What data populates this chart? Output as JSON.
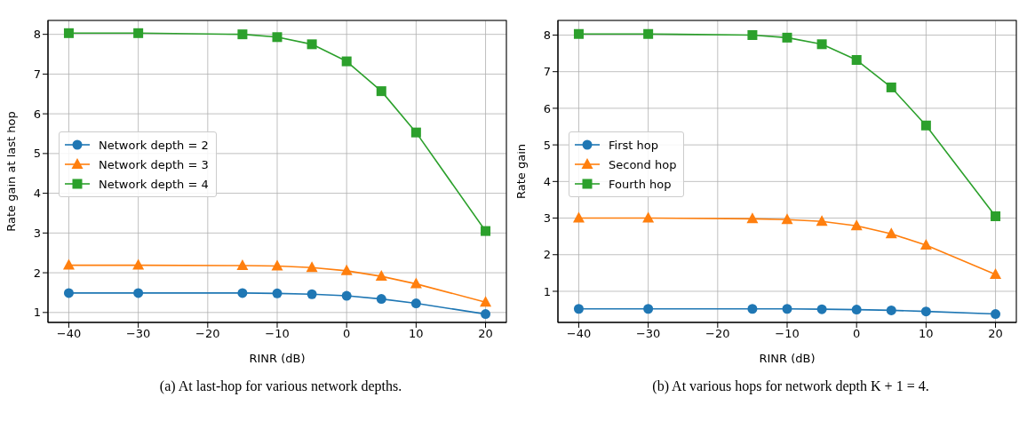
{
  "chart_data": [
    {
      "type": "line",
      "xlabel": "RINR (dB)",
      "ylabel": "Rate gain at last hop",
      "annotations": [
        "(a) At last-hop for various network depths."
      ],
      "x": [
        -40,
        -30,
        -15,
        -10,
        -5,
        0,
        5,
        10,
        20
      ],
      "series": [
        {
          "name": "Network depth = 2",
          "color": "#1f77b4",
          "marker": "circle",
          "values": [
            1.49,
            1.49,
            1.49,
            1.48,
            1.46,
            1.42,
            1.34,
            1.23,
            0.96
          ]
        },
        {
          "name": "Network depth = 3",
          "color": "#ff7f0e",
          "marker": "triangle",
          "values": [
            2.19,
            2.19,
            2.18,
            2.17,
            2.13,
            2.05,
            1.91,
            1.72,
            1.26
          ]
        },
        {
          "name": "Network depth = 4",
          "color": "#2ca02c",
          "marker": "square",
          "values": [
            8.03,
            8.03,
            8.0,
            7.93,
            7.75,
            7.32,
            6.57,
            5.53,
            3.05
          ]
        }
      ],
      "xlim": [
        -43,
        23
      ],
      "xticks": [
        -40,
        -30,
        -20,
        -10,
        0,
        10,
        20
      ],
      "ylim": [
        0.75,
        8.35
      ],
      "yticks": [
        1,
        2,
        3,
        4,
        5,
        6,
        7,
        8
      ],
      "grid": true,
      "legend": "left",
      "line_style": "solid"
    },
    {
      "type": "line",
      "xlabel": "RINR (dB)",
      "ylabel": "Rate gain",
      "annotations": [
        "(b) At various hops for network depth K + 1 = 4."
      ],
      "x": [
        -40,
        -30,
        -15,
        -10,
        -5,
        0,
        5,
        10,
        20
      ],
      "series": [
        {
          "name": "First hop",
          "color": "#1f77b4",
          "marker": "circle",
          "values": [
            0.52,
            0.52,
            0.52,
            0.52,
            0.51,
            0.5,
            0.48,
            0.45,
            0.38
          ]
        },
        {
          "name": "Second hop",
          "color": "#ff7f0e",
          "marker": "triangle",
          "values": [
            3.0,
            3.0,
            2.98,
            2.96,
            2.91,
            2.79,
            2.57,
            2.26,
            1.46
          ]
        },
        {
          "name": "Fourth hop",
          "color": "#2ca02c",
          "marker": "square",
          "values": [
            8.03,
            8.03,
            8.0,
            7.93,
            7.75,
            7.32,
            6.57,
            5.53,
            3.05
          ]
        }
      ],
      "xlim": [
        -43,
        23
      ],
      "xticks": [
        -40,
        -30,
        -20,
        -10,
        0,
        10,
        20
      ],
      "ylim": [
        0.15,
        8.4
      ],
      "yticks": [
        1,
        2,
        3,
        4,
        5,
        6,
        7,
        8
      ],
      "grid": true,
      "legend": "left",
      "line_style": "solid"
    }
  ]
}
